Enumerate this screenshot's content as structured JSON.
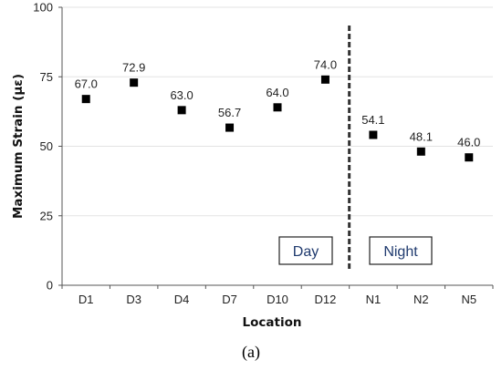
{
  "chart_data": {
    "type": "scatter",
    "categories": [
      "D1",
      "D3",
      "D4",
      "D7",
      "D10",
      "D12",
      "N1",
      "N2",
      "N5"
    ],
    "values": [
      67.0,
      72.9,
      63.0,
      56.7,
      64.0,
      74.0,
      54.1,
      48.1,
      46.0
    ],
    "value_labels": [
      "67.0",
      "72.9",
      "63.0",
      "56.7",
      "64.0",
      "74.0",
      "54.1",
      "48.1",
      "46.0"
    ],
    "xlabel": "Location",
    "ylabel": "Maximum Strain (με)",
    "ylim": [
      0,
      100
    ],
    "yticks": [
      "0",
      "25",
      "50",
      "75",
      "100"
    ],
    "grid": true,
    "marker": "square",
    "marker_color": "#000000",
    "divider": {
      "style": "dashed",
      "between": [
        "D12",
        "N1"
      ]
    },
    "annotations": [
      {
        "text": "Day",
        "color": "#1f3a6e"
      },
      {
        "text": "Night",
        "color": "#1f3a6e"
      }
    ],
    "caption": "(a)"
  }
}
